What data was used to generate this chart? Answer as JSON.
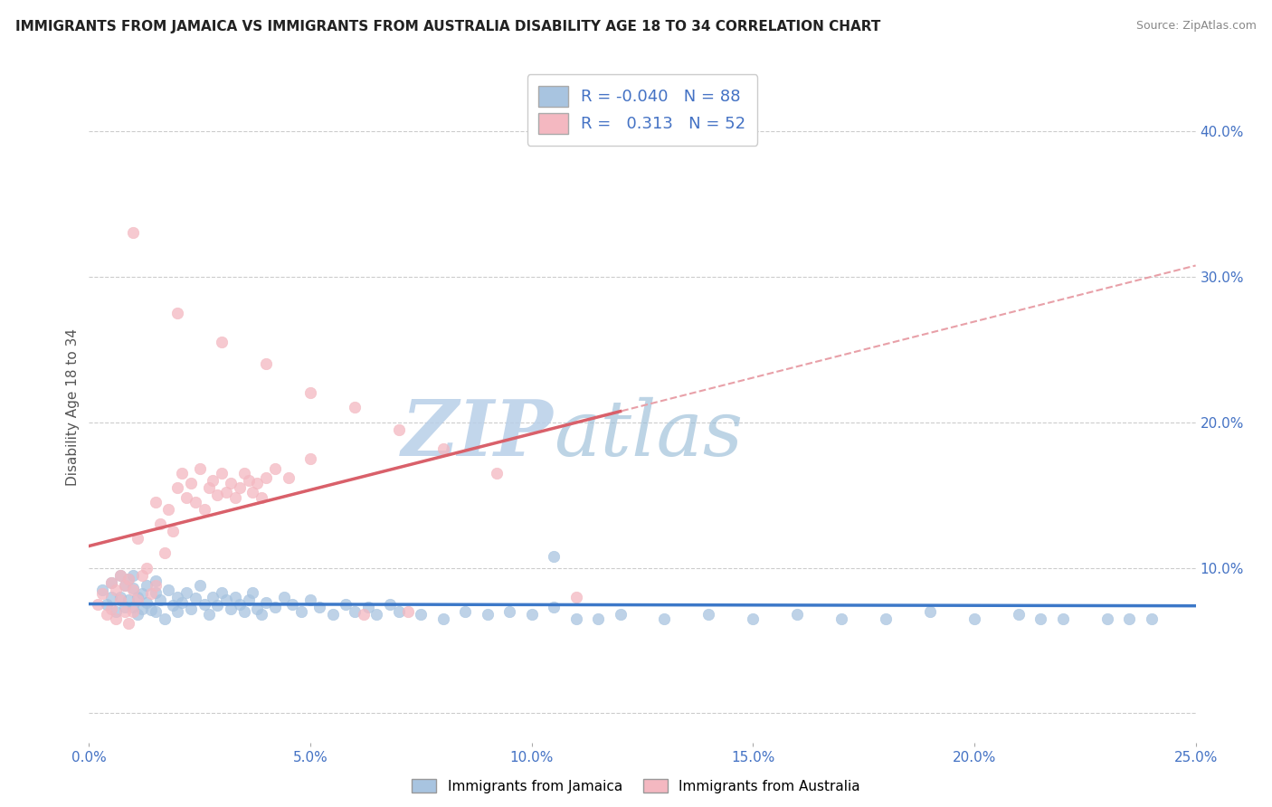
{
  "title": "IMMIGRANTS FROM JAMAICA VS IMMIGRANTS FROM AUSTRALIA DISABILITY AGE 18 TO 34 CORRELATION CHART",
  "source_text": "Source: ZipAtlas.com",
  "ylabel": "Disability Age 18 to 34",
  "xlim": [
    0.0,
    0.25
  ],
  "ylim": [
    -0.02,
    0.44
  ],
  "xticks": [
    0.0,
    0.05,
    0.1,
    0.15,
    0.2,
    0.25
  ],
  "xtick_labels": [
    "0.0%",
    "5.0%",
    "10.0%",
    "15.0%",
    "20.0%",
    "25.0%"
  ],
  "yticks": [
    0.0,
    0.1,
    0.2,
    0.3,
    0.4
  ],
  "ytick_labels": [
    "",
    "10.0%",
    "20.0%",
    "30.0%",
    "40.0%"
  ],
  "jamaica_color": "#a8c4e0",
  "australia_color": "#f4b8c1",
  "jamaica_line_color": "#3c78c8",
  "australia_line_color": "#d9606a",
  "australia_dash_color": "#e8a0a8",
  "jamaica_R": -0.04,
  "jamaica_N": 88,
  "australia_R": 0.313,
  "australia_N": 52,
  "watermark_zip": "ZIP",
  "watermark_atlas": "atlas",
  "watermark_color": "#c8d8ed",
  "jamaica_scatter_x": [
    0.003,
    0.004,
    0.005,
    0.005,
    0.006,
    0.007,
    0.007,
    0.008,
    0.008,
    0.009,
    0.009,
    0.01,
    0.01,
    0.01,
    0.011,
    0.011,
    0.012,
    0.012,
    0.013,
    0.013,
    0.014,
    0.015,
    0.015,
    0.015,
    0.016,
    0.017,
    0.018,
    0.019,
    0.02,
    0.02,
    0.021,
    0.022,
    0.023,
    0.024,
    0.025,
    0.026,
    0.027,
    0.028,
    0.029,
    0.03,
    0.031,
    0.032,
    0.033,
    0.034,
    0.035,
    0.036,
    0.037,
    0.038,
    0.039,
    0.04,
    0.042,
    0.044,
    0.046,
    0.048,
    0.05,
    0.052,
    0.055,
    0.058,
    0.06,
    0.063,
    0.065,
    0.068,
    0.07,
    0.075,
    0.08,
    0.085,
    0.09,
    0.095,
    0.1,
    0.105,
    0.11,
    0.12,
    0.13,
    0.14,
    0.15,
    0.16,
    0.17,
    0.18,
    0.19,
    0.2,
    0.21,
    0.215,
    0.22,
    0.23,
    0.235,
    0.24,
    0.105,
    0.115
  ],
  "jamaica_scatter_y": [
    0.085,
    0.075,
    0.09,
    0.08,
    0.07,
    0.095,
    0.08,
    0.088,
    0.073,
    0.092,
    0.078,
    0.086,
    0.073,
    0.095,
    0.08,
    0.068,
    0.082,
    0.072,
    0.088,
    0.076,
    0.071,
    0.083,
    0.091,
    0.07,
    0.078,
    0.065,
    0.085,
    0.074,
    0.08,
    0.07,
    0.076,
    0.083,
    0.072,
    0.079,
    0.088,
    0.075,
    0.068,
    0.08,
    0.074,
    0.083,
    0.078,
    0.072,
    0.08,
    0.075,
    0.07,
    0.078,
    0.083,
    0.072,
    0.068,
    0.076,
    0.073,
    0.08,
    0.075,
    0.07,
    0.078,
    0.073,
    0.068,
    0.075,
    0.07,
    0.073,
    0.068,
    0.075,
    0.07,
    0.068,
    0.065,
    0.07,
    0.068,
    0.07,
    0.068,
    0.073,
    0.065,
    0.068,
    0.065,
    0.068,
    0.065,
    0.068,
    0.065,
    0.065,
    0.07,
    0.065,
    0.068,
    0.065,
    0.065,
    0.065,
    0.065,
    0.065,
    0.108,
    0.065
  ],
  "australia_scatter_x": [
    0.002,
    0.003,
    0.004,
    0.005,
    0.005,
    0.006,
    0.006,
    0.007,
    0.007,
    0.008,
    0.008,
    0.009,
    0.009,
    0.01,
    0.01,
    0.011,
    0.011,
    0.012,
    0.013,
    0.014,
    0.015,
    0.015,
    0.016,
    0.017,
    0.018,
    0.019,
    0.02,
    0.021,
    0.022,
    0.023,
    0.024,
    0.025,
    0.026,
    0.027,
    0.028,
    0.029,
    0.03,
    0.031,
    0.032,
    0.033,
    0.034,
    0.035,
    0.036,
    0.037,
    0.038,
    0.039,
    0.04,
    0.042,
    0.045,
    0.05,
    0.062,
    0.072
  ],
  "australia_scatter_y": [
    0.075,
    0.082,
    0.068,
    0.09,
    0.072,
    0.085,
    0.065,
    0.095,
    0.078,
    0.088,
    0.07,
    0.092,
    0.062,
    0.085,
    0.07,
    0.12,
    0.078,
    0.095,
    0.1,
    0.082,
    0.145,
    0.088,
    0.13,
    0.11,
    0.14,
    0.125,
    0.155,
    0.165,
    0.148,
    0.158,
    0.145,
    0.168,
    0.14,
    0.155,
    0.16,
    0.15,
    0.165,
    0.152,
    0.158,
    0.148,
    0.155,
    0.165,
    0.16,
    0.152,
    0.158,
    0.148,
    0.162,
    0.168,
    0.162,
    0.175,
    0.068,
    0.07
  ],
  "australia_extra_x": [
    0.01,
    0.02,
    0.03,
    0.04,
    0.05,
    0.06,
    0.07,
    0.08,
    0.092,
    0.11
  ],
  "australia_extra_y": [
    0.33,
    0.275,
    0.255,
    0.24,
    0.22,
    0.21,
    0.195,
    0.182,
    0.165,
    0.08
  ]
}
